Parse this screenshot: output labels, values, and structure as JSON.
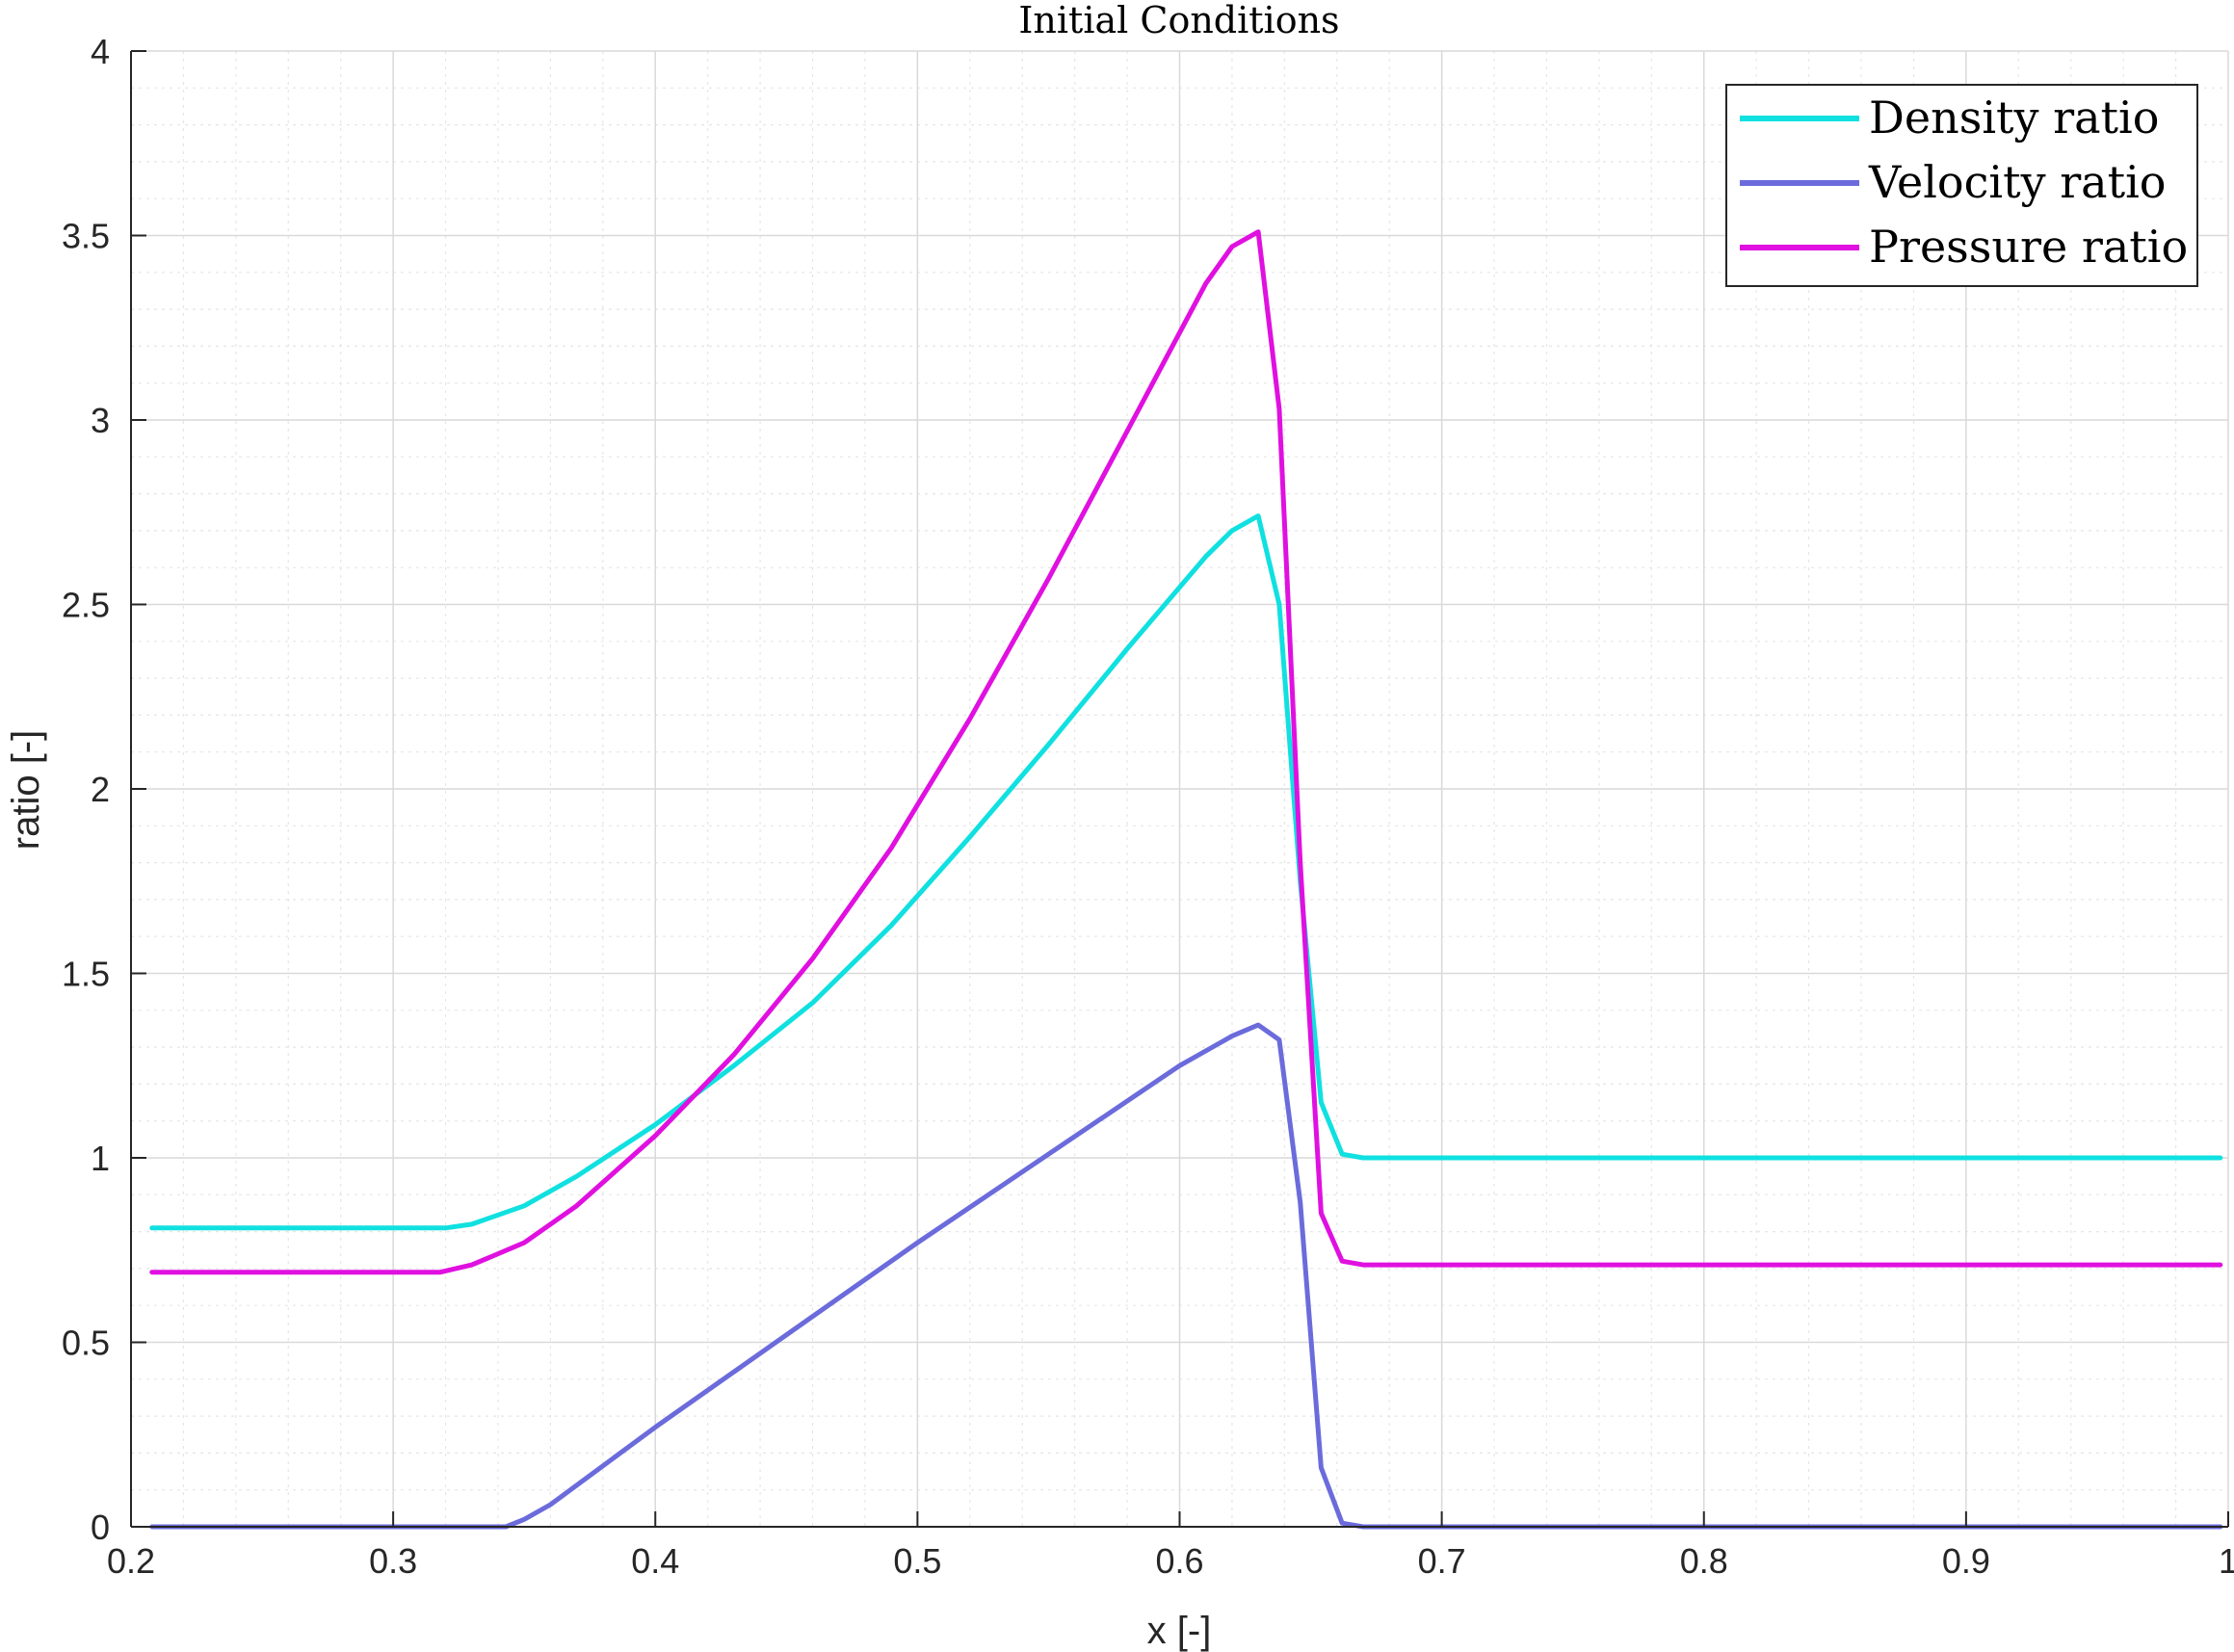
{
  "chart_data": {
    "type": "line",
    "title": "Initial Conditions",
    "xlabel": "x [-]",
    "ylabel": "ratio [-]",
    "xlim": [
      0.2,
      1
    ],
    "ylim": [
      0,
      4
    ],
    "xticks": [
      "0.2",
      "0.3",
      "0.4",
      "0.5",
      "0.6",
      "0.7",
      "0.8",
      "0.9",
      "1"
    ],
    "yticks": [
      "0",
      "0.5",
      "1",
      "1.5",
      "2",
      "2.5",
      "3",
      "3.5",
      "4"
    ],
    "grid": true,
    "minor_grid": true,
    "legend_position": "top-right",
    "series": [
      {
        "name": "Density ratio",
        "color": "#10e0e0",
        "x": [
          0.208,
          0.32,
          0.33,
          0.35,
          0.37,
          0.4,
          0.43,
          0.46,
          0.49,
          0.52,
          0.55,
          0.58,
          0.61,
          0.62,
          0.63,
          0.638,
          0.646,
          0.654,
          0.662,
          0.67,
          0.7,
          0.8,
          0.9,
          0.997
        ],
        "y": [
          0.81,
          0.81,
          0.82,
          0.87,
          0.95,
          1.09,
          1.25,
          1.42,
          1.63,
          1.87,
          2.12,
          2.38,
          2.63,
          2.7,
          2.74,
          2.5,
          1.75,
          1.15,
          1.01,
          1.0,
          1.0,
          1.0,
          1.0,
          1.0
        ]
      },
      {
        "name": "Velocity ratio",
        "color": "#6b6bdc",
        "x": [
          0.208,
          0.343,
          0.35,
          0.36,
          0.4,
          0.45,
          0.5,
          0.55,
          0.6,
          0.62,
          0.63,
          0.638,
          0.646,
          0.654,
          0.662,
          0.67,
          0.7,
          0.8,
          0.9,
          0.997
        ],
        "y": [
          0,
          0,
          0.02,
          0.06,
          0.27,
          0.52,
          0.77,
          1.01,
          1.25,
          1.33,
          1.36,
          1.32,
          0.88,
          0.16,
          0.01,
          0,
          0,
          0,
          0,
          0
        ]
      },
      {
        "name": "Pressure ratio",
        "color": "#e010e0",
        "x": [
          0.208,
          0.318,
          0.33,
          0.35,
          0.37,
          0.4,
          0.43,
          0.46,
          0.49,
          0.52,
          0.55,
          0.58,
          0.61,
          0.62,
          0.63,
          0.638,
          0.646,
          0.654,
          0.662,
          0.67,
          0.7,
          0.8,
          0.9,
          0.997
        ],
        "y": [
          0.69,
          0.69,
          0.71,
          0.77,
          0.87,
          1.06,
          1.28,
          1.54,
          1.84,
          2.19,
          2.57,
          2.97,
          3.37,
          3.47,
          3.51,
          3.03,
          1.8,
          0.85,
          0.72,
          0.71,
          0.71,
          0.71,
          0.71,
          0.71
        ]
      }
    ]
  }
}
